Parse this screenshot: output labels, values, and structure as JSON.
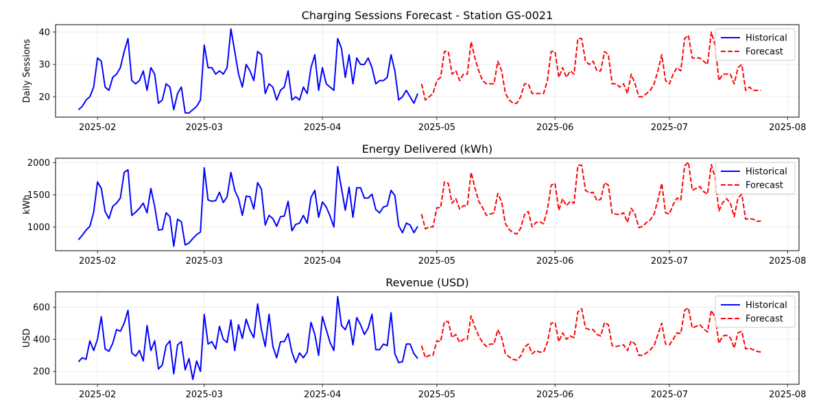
{
  "colors": {
    "historical": "#0000ff",
    "forecast": "#ff0000"
  },
  "chart_data": [
    {
      "type": "line",
      "title": "Charging Sessions Forecast - Station GS-0021",
      "xlabel": "",
      "ylabel": "Daily Sessions",
      "xlim": [
        "2025-01-21",
        "2025-08-04"
      ],
      "ylim": [
        13.7,
        42.3
      ],
      "xticks": [
        "2025-02-01",
        "2025-03-01",
        "2025-04-01",
        "2025-05-01",
        "2025-06-01",
        "2025-07-01",
        "2025-08-01"
      ],
      "xtick_labels": [
        "2025-02",
        "2025-03",
        "2025-04",
        "2025-05",
        "2025-06",
        "2025-07",
        "2025-08"
      ],
      "yticks": [
        20,
        30,
        40
      ],
      "grid": true,
      "legend": "top-right",
      "series": [
        {
          "name": "Historical",
          "style": "solid",
          "x_start": "2025-01-27",
          "values": [
            16,
            17,
            19,
            20,
            23,
            32,
            31,
            23,
            22,
            26,
            27,
            29,
            34,
            38,
            25,
            24,
            25,
            28,
            22,
            29,
            27,
            18,
            19,
            24,
            23,
            16,
            21,
            23,
            15,
            15,
            16,
            17,
            19,
            36,
            29,
            29,
            27,
            28,
            27,
            29,
            41,
            34,
            27,
            23,
            30,
            28,
            25,
            34,
            33,
            21,
            24,
            23,
            19,
            22,
            23,
            28,
            19,
            20,
            19,
            23,
            21,
            29,
            33,
            22,
            29,
            24,
            23,
            22,
            38,
            35,
            26,
            33,
            24,
            32,
            30,
            30,
            32,
            29,
            24,
            25,
            25,
            26,
            33,
            28,
            19,
            20,
            22,
            20,
            18,
            21
          ]
        },
        {
          "name": "Forecast",
          "style": "dashed",
          "x_start": "2025-04-27",
          "values": [
            24,
            19,
            20,
            21,
            25,
            26,
            34,
            34,
            27,
            28,
            25,
            27,
            27,
            37,
            32,
            28,
            25,
            24,
            24,
            24,
            31,
            28,
            21,
            19,
            18,
            18,
            20,
            24,
            24,
            21,
            21,
            21,
            21,
            25,
            34,
            34,
            26,
            29,
            26,
            28,
            27,
            38,
            38,
            31,
            30,
            31,
            28,
            28,
            34,
            33,
            24,
            24,
            23,
            24,
            21,
            27,
            24,
            20,
            20,
            21,
            22,
            24,
            28,
            33,
            25,
            24,
            27,
            29,
            28,
            38,
            39,
            32,
            32,
            32,
            31,
            30,
            40,
            36,
            25,
            27,
            27,
            27,
            24,
            29,
            30,
            22,
            23,
            22,
            22,
            22
          ]
        }
      ]
    },
    {
      "type": "line",
      "title": "Energy Delivered (kWh)",
      "xlabel": "",
      "ylabel": "kWh",
      "xlim": [
        "2025-01-21",
        "2025-08-04"
      ],
      "ylim": [
        630,
        2070
      ],
      "xticks": [
        "2025-02-01",
        "2025-03-01",
        "2025-04-01",
        "2025-05-01",
        "2025-06-01",
        "2025-07-01",
        "2025-08-01"
      ],
      "xtick_labels": [
        "2025-02",
        "2025-03",
        "2025-04",
        "2025-05",
        "2025-06",
        "2025-07",
        "2025-08"
      ],
      "yticks": [
        1000,
        1500,
        2000
      ],
      "grid": true,
      "legend": "top-right",
      "series": [
        {
          "name": "Historical",
          "style": "solid",
          "x_start": "2025-01-27",
          "values": [
            800,
            870,
            950,
            1010,
            1230,
            1700,
            1600,
            1240,
            1130,
            1320,
            1370,
            1450,
            1850,
            1890,
            1180,
            1230,
            1290,
            1370,
            1220,
            1600,
            1320,
            950,
            960,
            1220,
            1160,
            700,
            1120,
            1080,
            720,
            750,
            820,
            880,
            920,
            1920,
            1420,
            1400,
            1410,
            1540,
            1380,
            1470,
            1850,
            1570,
            1440,
            1180,
            1480,
            1470,
            1280,
            1690,
            1590,
            1030,
            1180,
            1130,
            1010,
            1160,
            1170,
            1400,
            940,
            1040,
            1060,
            1180,
            1060,
            1460,
            1570,
            1150,
            1390,
            1310,
            1170,
            1000,
            1940,
            1600,
            1260,
            1620,
            1150,
            1610,
            1610,
            1450,
            1450,
            1510,
            1270,
            1220,
            1310,
            1330,
            1570,
            1490,
            1020,
            910,
            1060,
            1030,
            910,
            1010
          ]
        },
        {
          "name": "Forecast",
          "style": "dashed",
          "x_start": "2025-04-27",
          "values": [
            1200,
            970,
            1000,
            1000,
            1300,
            1300,
            1700,
            1680,
            1370,
            1440,
            1280,
            1330,
            1330,
            1850,
            1610,
            1400,
            1300,
            1180,
            1200,
            1220,
            1520,
            1390,
            1050,
            960,
            910,
            890,
            980,
            1190,
            1240,
            1000,
            1070,
            1080,
            1050,
            1270,
            1650,
            1680,
            1260,
            1440,
            1330,
            1400,
            1370,
            1960,
            1960,
            1570,
            1530,
            1540,
            1410,
            1430,
            1690,
            1650,
            1210,
            1200,
            1190,
            1220,
            1070,
            1290,
            1200,
            990,
            1010,
            1070,
            1110,
            1200,
            1420,
            1680,
            1220,
            1200,
            1350,
            1450,
            1420,
            1950,
            2010,
            1570,
            1600,
            1630,
            1550,
            1510,
            1970,
            1770,
            1250,
            1380,
            1440,
            1370,
            1160,
            1450,
            1510,
            1120,
            1130,
            1120,
            1090,
            1090
          ]
        }
      ]
    },
    {
      "type": "line",
      "title": "Revenue (USD)",
      "xlabel": "",
      "ylabel": "USD",
      "xlim": [
        "2025-01-21",
        "2025-08-04"
      ],
      "ylim": [
        120,
        695
      ],
      "xticks": [
        "2025-02-01",
        "2025-03-01",
        "2025-04-01",
        "2025-05-01",
        "2025-06-01",
        "2025-07-01",
        "2025-08-01"
      ],
      "xtick_labels": [
        "2025-02",
        "2025-03",
        "2025-04",
        "2025-05",
        "2025-06",
        "2025-07",
        "2025-08"
      ],
      "yticks": [
        200,
        400,
        600
      ],
      "grid": true,
      "legend": "top-right",
      "series": [
        {
          "name": "Historical",
          "style": "solid",
          "x_start": "2025-01-27",
          "values": [
            260,
            285,
            275,
            390,
            330,
            400,
            540,
            340,
            325,
            375,
            460,
            450,
            500,
            580,
            315,
            295,
            330,
            265,
            485,
            330,
            390,
            215,
            240,
            360,
            390,
            185,
            365,
            385,
            210,
            280,
            150,
            265,
            200,
            555,
            370,
            385,
            340,
            480,
            400,
            380,
            520,
            330,
            490,
            405,
            525,
            455,
            410,
            620,
            460,
            355,
            555,
            355,
            285,
            385,
            385,
            435,
            320,
            255,
            315,
            285,
            320,
            505,
            430,
            300,
            540,
            460,
            380,
            330,
            665,
            485,
            460,
            520,
            365,
            535,
            490,
            430,
            470,
            555,
            335,
            335,
            370,
            360,
            565,
            310,
            255,
            260,
            370,
            370,
            310,
            280
          ]
        },
        {
          "name": "Forecast",
          "style": "dashed",
          "x_start": "2025-04-27",
          "values": [
            360,
            285,
            300,
            300,
            390,
            385,
            510,
            510,
            410,
            430,
            380,
            400,
            400,
            545,
            475,
            420,
            380,
            355,
            370,
            370,
            460,
            410,
            310,
            290,
            275,
            270,
            295,
            350,
            370,
            310,
            330,
            320,
            320,
            380,
            500,
            505,
            385,
            440,
            400,
            420,
            410,
            570,
            590,
            470,
            460,
            460,
            430,
            420,
            505,
            490,
            360,
            355,
            360,
            365,
            330,
            390,
            370,
            300,
            300,
            315,
            335,
            360,
            430,
            500,
            370,
            365,
            400,
            440,
            435,
            580,
            595,
            470,
            480,
            490,
            465,
            445,
            580,
            535,
            375,
            420,
            425,
            410,
            345,
            440,
            450,
            340,
            345,
            335,
            325,
            320
          ]
        }
      ]
    }
  ]
}
